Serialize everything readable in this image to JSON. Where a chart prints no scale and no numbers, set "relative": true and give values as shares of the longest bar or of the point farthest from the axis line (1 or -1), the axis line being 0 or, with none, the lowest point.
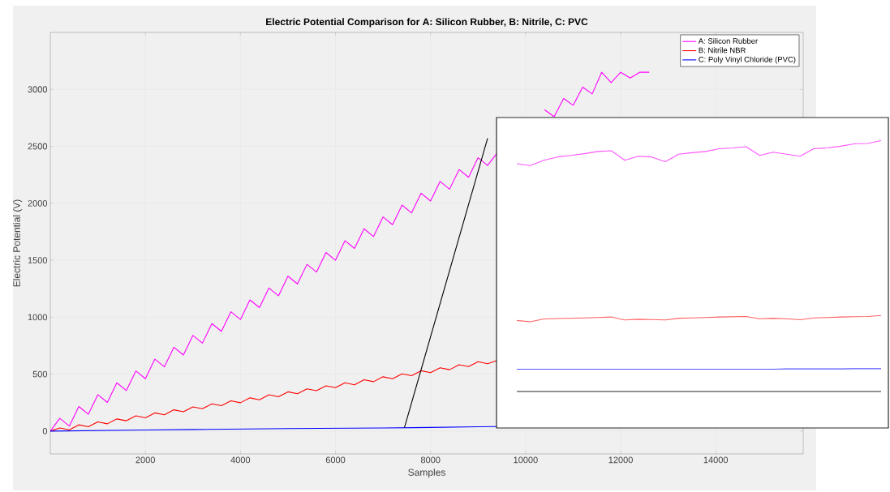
{
  "chart_data": [
    {
      "type": "line",
      "title": "Electric Potential Comparison for A: Silicon Rubber, B: Nitrile, C: PVC",
      "xlabel": "Samples",
      "ylabel": "Electric Potential (V)",
      "xlim": [
        0,
        15840
      ],
      "ylim": [
        -200,
        3500
      ],
      "xticks": [
        2000,
        4000,
        6000,
        8000,
        10000,
        12000,
        14000
      ],
      "yticks": [
        0,
        500,
        1000,
        1500,
        2000,
        2500,
        3000
      ],
      "grid": true,
      "legend": "top right",
      "series": [
        {
          "name": "A: Silicon Rubber",
          "color": "#ff00ff",
          "x": [
            0,
            200,
            400,
            600,
            800,
            1000,
            1200,
            1400,
            1600,
            1800,
            2000,
            2200,
            2400,
            2600,
            2800,
            3000,
            3200,
            3400,
            3600,
            3800,
            4000,
            4200,
            4400,
            4600,
            4800,
            5000,
            5200,
            5400,
            5600,
            5800,
            6000,
            6200,
            6400,
            6600,
            6800,
            7000,
            7200,
            7400,
            7600,
            7800,
            8000,
            8200,
            8400,
            8600,
            8800,
            9000,
            9200,
            9400,
            9800,
            10400,
            10600,
            10800,
            11000,
            11200,
            11400,
            11600,
            11800,
            12000,
            12200,
            12400,
            12600
          ],
          "values": [
            0,
            112,
            44,
            216,
            148,
            320,
            252,
            424,
            356,
            528,
            460,
            632,
            564,
            736,
            668,
            840,
            772,
            944,
            876,
            1048,
            980,
            1152,
            1084,
            1256,
            1188,
            1360,
            1292,
            1464,
            1396,
            1568,
            1500,
            1672,
            1604,
            1776,
            1708,
            1880,
            1812,
            1984,
            1916,
            2088,
            2020,
            2192,
            2124,
            2296,
            2228,
            2400,
            2332,
            2440,
            null,
            2820,
            2760,
            2920,
            2860,
            3020,
            2960,
            3150,
            3060,
            3150,
            3100,
            3150,
            3150
          ]
        },
        {
          "name": "B: Nitrile NBR",
          "color": "#ff0000",
          "x": [
            0,
            200,
            400,
            600,
            800,
            1000,
            1200,
            1400,
            1600,
            1800,
            2000,
            2200,
            2400,
            2600,
            2800,
            3000,
            3200,
            3400,
            3600,
            3800,
            4000,
            4200,
            4400,
            4600,
            4800,
            5000,
            5200,
            5400,
            5600,
            5800,
            6000,
            6200,
            6400,
            6600,
            6800,
            7000,
            7200,
            7400,
            7600,
            7800,
            8000,
            8200,
            8400,
            8600,
            8800,
            9000,
            9200,
            9400
          ],
          "values": [
            0,
            28,
            11,
            55,
            38,
            81,
            64,
            107,
            91,
            134,
            117,
            160,
            143,
            187,
            170,
            213,
            196,
            239,
            223,
            266,
            249,
            292,
            275,
            319,
            302,
            345,
            328,
            371,
            355,
            398,
            381,
            424,
            407,
            451,
            434,
            477,
            460,
            503,
            487,
            530,
            513,
            556,
            539,
            583,
            566,
            609,
            592,
            620
          ]
        },
        {
          "name": "C: Poly Vinyl Chloride (PVC)",
          "color": "#0000ff",
          "x": [
            0,
            1000,
            2000,
            3000,
            4000,
            5000,
            6000,
            7000,
            8000,
            9000,
            9400
          ],
          "values": [
            0,
            5,
            10,
            14,
            18,
            22,
            25,
            28,
            32,
            38,
            40
          ]
        },
        {
          "type": "line",
          "color": "#000000",
          "x": [
            7450,
            9200
          ],
          "values": [
            30,
            2570
          ]
        }
      ]
    },
    {
      "type": "line",
      "relative": true,
      "tick_labels": false,
      "categories": [
        null,
        null,
        null,
        null,
        null,
        null,
        null,
        null,
        null,
        null,
        null,
        null,
        null,
        null,
        null,
        null,
        null,
        null,
        null,
        null,
        null,
        null,
        null,
        null,
        null,
        null,
        null,
        null
      ],
      "series": [
        {
          "color": "#ff55ff",
          "values": [
            0.908,
            0.901,
            0.922,
            0.935,
            0.941,
            0.948,
            0.957,
            0.96,
            0.922,
            0.938,
            0.935,
            0.916,
            0.946,
            0.952,
            0.957,
            0.968,
            0.971,
            0.976,
            0.941,
            0.954,
            0.946,
            0.938,
            0.968,
            0.971,
            0.978,
            0.987,
            0.989,
            1
          ]
        },
        {
          "color": "#ff6060",
          "values": [
            0.283,
            0.278,
            0.289,
            0.291,
            0.292,
            0.293,
            0.295,
            0.297,
            0.285,
            0.288,
            0.287,
            0.285,
            0.292,
            0.293,
            0.295,
            0.297,
            0.298,
            0.299,
            0.29,
            0.292,
            0.29,
            0.286,
            0.293,
            0.295,
            0.297,
            0.298,
            0.299,
            0.303
          ]
        },
        {
          "color": "#5555ff",
          "values": [
            0.089,
            0.089,
            0.089,
            0.089,
            0.089,
            0.089,
            0.089,
            0.089,
            0.089,
            0.089,
            0.089,
            0.089,
            0.089,
            0.089,
            0.089,
            0.089,
            0.089,
            0.089,
            0.089,
            0.089,
            0.09,
            0.09,
            0.09,
            0.09,
            0.09,
            0.091,
            0.091,
            0.091
          ]
        }
      ]
    }
  ]
}
